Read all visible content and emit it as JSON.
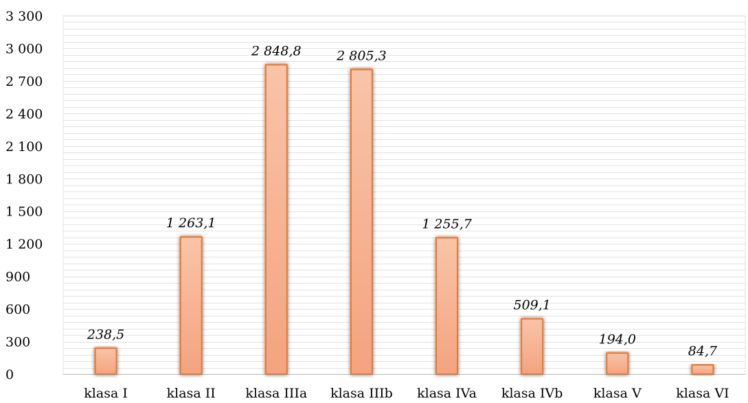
{
  "chart_data": {
    "type": "bar",
    "title": "",
    "xlabel": "",
    "ylabel": "",
    "categories": [
      "klasa I",
      "klasa II",
      "klasa IIIa",
      "klasa IIIb",
      "klasa IVa",
      "klasa IVb",
      "klasa V",
      "klasa VI"
    ],
    "values": [
      238.5,
      1263.1,
      2848.8,
      2805.3,
      1255.7,
      509.1,
      194.0,
      84.7
    ],
    "data_labels": [
      "238,5",
      "1 263,1",
      "2 848,8",
      "2 805,3",
      "1 255,7",
      "509,1",
      "194,0",
      "84,7"
    ],
    "ylim": [
      0,
      3300
    ],
    "yticks": [
      0,
      300,
      600,
      900,
      1200,
      1500,
      1800,
      2100,
      2400,
      2700,
      3000,
      3300
    ],
    "ytick_labels": [
      "0",
      "300",
      "600",
      "900",
      "1 200",
      "1 500",
      "1 800",
      "2 100",
      "2 400",
      "2 700",
      "3 000",
      "3 300"
    ],
    "grid": true,
    "legend": "none",
    "colors": {
      "bar_fill_top": "#f8c4a8",
      "bar_fill_bottom": "#f4a37f",
      "bar_stroke": "#e8762e",
      "gridline": "#e2e2e2",
      "axis": "#bfbfbf"
    }
  }
}
